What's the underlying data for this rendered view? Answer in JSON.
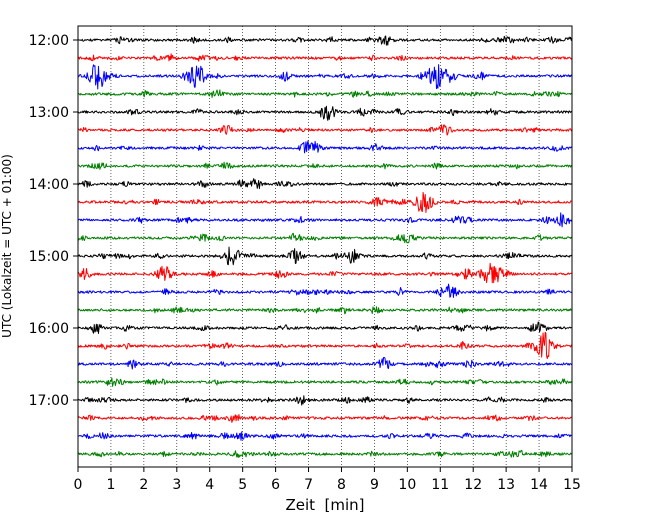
{
  "chart_data": {
    "type": "line",
    "title": "",
    "xlabel": "Zeit  [min]",
    "ylabel": "UTC (Lokalzeit = UTC + 01:00)",
    "xlim": [
      0,
      15
    ],
    "x_ticks": [
      0,
      1,
      2,
      3,
      4,
      5,
      6,
      7,
      8,
      9,
      10,
      11,
      12,
      13,
      14,
      15
    ],
    "x_tick_labels": [
      "0",
      "1",
      "2",
      "3",
      "4",
      "5",
      "6",
      "7",
      "8",
      "9",
      "10",
      "11",
      "12",
      "13",
      "14",
      "15"
    ],
    "y_tick_labels": [
      "12:00",
      "13:00",
      "14:00",
      "15:00",
      "16:00",
      "17:00"
    ],
    "minutes_per_trace": 15,
    "trace_colors": [
      "#000000",
      "#ff0000",
      "#0000ff",
      "#008000"
    ],
    "grid": "vertical dotted lines at each minute",
    "traces": [
      {
        "start": "12:00",
        "color": "#000000",
        "events": [
          {
            "t": 9.3,
            "amp": 0.5
          },
          {
            "t": 12.9,
            "amp": 0.3
          }
        ]
      },
      {
        "start": "12:15",
        "color": "#ff0000",
        "events": [
          {
            "t": 0.5,
            "amp": 0.2
          }
        ]
      },
      {
        "start": "12:30",
        "color": "#0000ff",
        "events": [
          {
            "t": 0.55,
            "amp": 1.0
          },
          {
            "t": 3.6,
            "amp": 1.0
          },
          {
            "t": 10.9,
            "amp": 1.0
          },
          {
            "t": 12.2,
            "amp": 0.3
          }
        ]
      },
      {
        "start": "12:45",
        "color": "#008000",
        "events": [
          {
            "t": 4.3,
            "amp": 0.3
          }
        ]
      },
      {
        "start": "13:00",
        "color": "#000000",
        "events": [
          {
            "t": 7.55,
            "amp": 0.7
          }
        ]
      },
      {
        "start": "13:15",
        "color": "#ff0000",
        "events": [
          {
            "t": 4.5,
            "amp": 0.4
          },
          {
            "t": 11.1,
            "amp": 0.5
          }
        ]
      },
      {
        "start": "13:30",
        "color": "#0000ff",
        "events": [
          {
            "t": 7.05,
            "amp": 0.8
          }
        ]
      },
      {
        "start": "13:45",
        "color": "#008000",
        "events": [
          {
            "t": 4.5,
            "amp": 0.3
          }
        ]
      },
      {
        "start": "14:00",
        "color": "#000000",
        "events": [
          {
            "t": 5.4,
            "amp": 0.4
          },
          {
            "t": 3.8,
            "amp": 0.25
          }
        ]
      },
      {
        "start": "14:15",
        "color": "#ff0000",
        "events": [
          {
            "t": 10.5,
            "amp": 1.0
          },
          {
            "t": 9.2,
            "amp": 0.25
          }
        ]
      },
      {
        "start": "14:30",
        "color": "#0000ff",
        "events": [
          {
            "t": 14.7,
            "amp": 0.6
          }
        ]
      },
      {
        "start": "14:45",
        "color": "#008000",
        "events": [
          {
            "t": 6.6,
            "amp": 0.4
          },
          {
            "t": 10.0,
            "amp": 0.4
          }
        ]
      },
      {
        "start": "15:00",
        "color": "#000000",
        "events": [
          {
            "t": 4.65,
            "amp": 0.8
          },
          {
            "t": 6.6,
            "amp": 0.6
          },
          {
            "t": 8.3,
            "amp": 0.5
          },
          {
            "t": 13.1,
            "amp": 0.3
          }
        ]
      },
      {
        "start": "15:15",
        "color": "#ff0000",
        "events": [
          {
            "t": 0.2,
            "amp": 0.5
          },
          {
            "t": 2.6,
            "amp": 0.7
          },
          {
            "t": 12.5,
            "amp": 1.0
          },
          {
            "t": 11.8,
            "amp": 0.4
          }
        ]
      },
      {
        "start": "15:30",
        "color": "#0000ff",
        "events": [
          {
            "t": 11.3,
            "amp": 0.6
          }
        ]
      },
      {
        "start": "15:45",
        "color": "#008000",
        "events": [
          {
            "t": 3.0,
            "amp": 0.3
          }
        ]
      },
      {
        "start": "16:00",
        "color": "#000000",
        "events": [
          {
            "t": 0.55,
            "amp": 0.3
          },
          {
            "t": 14.0,
            "amp": 0.5
          }
        ]
      },
      {
        "start": "16:15",
        "color": "#ff0000",
        "events": [
          {
            "t": 14.15,
            "amp": 1.0
          }
        ]
      },
      {
        "start": "16:30",
        "color": "#0000ff",
        "events": [
          {
            "t": 9.3,
            "amp": 0.5
          }
        ]
      },
      {
        "start": "16:45",
        "color": "#008000",
        "events": [
          {
            "t": 1.2,
            "amp": 0.3
          }
        ]
      },
      {
        "start": "17:00",
        "color": "#000000",
        "events": [
          {
            "t": 0.9,
            "amp": 0.15
          }
        ]
      },
      {
        "start": "17:15",
        "color": "#ff0000",
        "events": [
          {
            "t": 4.7,
            "amp": 0.3
          }
        ]
      },
      {
        "start": "17:30",
        "color": "#0000ff",
        "events": [
          {
            "t": 4.9,
            "amp": 0.2
          }
        ]
      },
      {
        "start": "17:45",
        "color": "#008000",
        "events": [
          {
            "t": 3.6,
            "amp": 0.1
          }
        ]
      }
    ]
  }
}
